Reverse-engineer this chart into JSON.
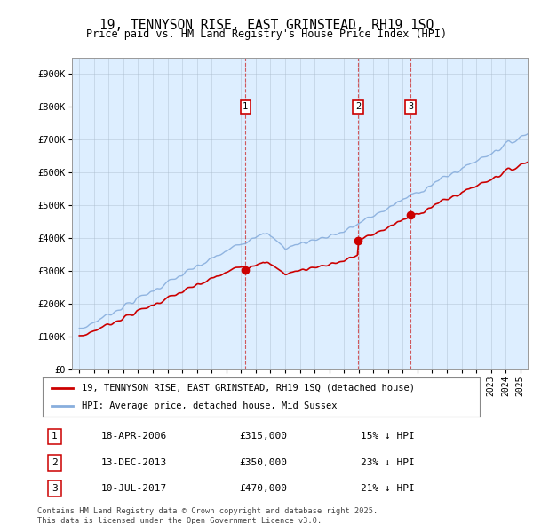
{
  "title": "19, TENNYSON RISE, EAST GRINSTEAD, RH19 1SQ",
  "subtitle": "Price paid vs. HM Land Registry's House Price Index (HPI)",
  "plot_bg_color": "#ddeeff",
  "ylim": [
    0,
    950000
  ],
  "yticks": [
    0,
    100000,
    200000,
    300000,
    400000,
    500000,
    600000,
    700000,
    800000,
    900000
  ],
  "ytick_labels": [
    "£0",
    "£100K",
    "£200K",
    "£300K",
    "£400K",
    "£500K",
    "£600K",
    "£700K",
    "£800K",
    "£900K"
  ],
  "legend1": "19, TENNYSON RISE, EAST GRINSTEAD, RH19 1SQ (detached house)",
  "legend2": "HPI: Average price, detached house, Mid Sussex",
  "sale_dates": [
    "18-APR-2006",
    "13-DEC-2013",
    "10-JUL-2017"
  ],
  "sale_prices": [
    315000,
    350000,
    470000
  ],
  "sale_hpi_diff": [
    "15% ↓ HPI",
    "23% ↓ HPI",
    "21% ↓ HPI"
  ],
  "sale_labels": [
    "1",
    "2",
    "3"
  ],
  "sale_years": [
    2006.3,
    2013.96,
    2017.53
  ],
  "footnote": "Contains HM Land Registry data © Crown copyright and database right 2025.\nThis data is licensed under the Open Government Licence v3.0.",
  "red_color": "#cc0000",
  "blue_color": "#88aedd",
  "annotation_box_color": "#cc0000",
  "xmin": 1995,
  "xmax": 2025.5
}
